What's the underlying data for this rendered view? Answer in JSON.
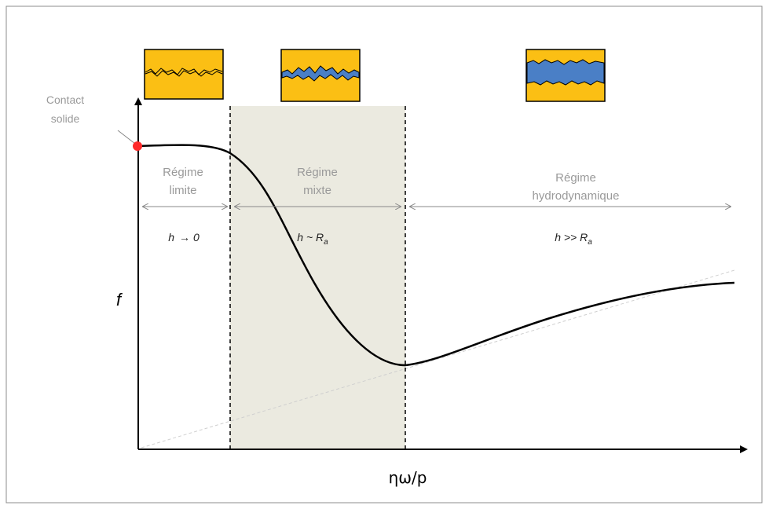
{
  "axes": {
    "y_label": "f",
    "x_label": "ηω/p"
  },
  "contact": {
    "line1": "Contact",
    "line2": "solide",
    "color": "#ff2a2a"
  },
  "regimes": [
    {
      "line1": "Régime",
      "line2": "limite",
      "formula_main": "h",
      "formula_arrow": "→",
      "formula_tail": "0",
      "formula_sub": ""
    },
    {
      "line1": "Régime",
      "line2": "mixte",
      "formula_main": "h ~ R",
      "formula_arrow": "",
      "formula_tail": "",
      "formula_sub": "a"
    },
    {
      "line1": "Régime",
      "line2": "hydrodynamique",
      "formula_main": "h >> R",
      "formula_arrow": "",
      "formula_tail": "",
      "formula_sub": "a"
    }
  ],
  "colors": {
    "surface": "#fbbf14",
    "lubricant": "#4a7fc6",
    "mixed_zone": "#ebeae0"
  }
}
